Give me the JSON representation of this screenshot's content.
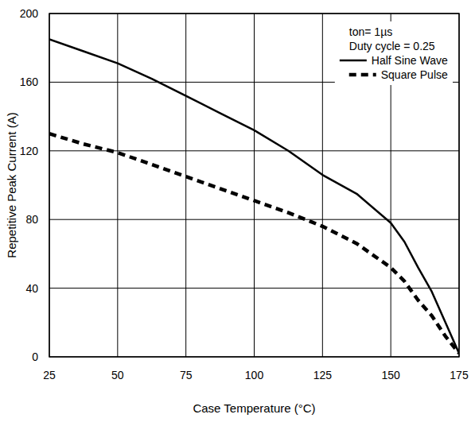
{
  "chart_data": {
    "type": "line",
    "x_label": "Case Temperature (°C)",
    "y_label": "Repetitive Peak Current (A)",
    "annotations": [
      "ton= 1µs",
      "Duty cycle = 0.25"
    ],
    "x": [
      25,
      37.5,
      50,
      62.5,
      75,
      87.5,
      100,
      112.5,
      125,
      137.5,
      150,
      155,
      160,
      165,
      170,
      175
    ],
    "series": [
      {
        "name": "Half Sine Wave",
        "color": "#000000",
        "line_style": "solid",
        "values": [
          185,
          178,
          171,
          162,
          152,
          142,
          132,
          120,
          106,
          95,
          78,
          67,
          52,
          38,
          20,
          2
        ]
      },
      {
        "name": "Square Pulse",
        "color": "#000000",
        "line_style": "dashed",
        "values": [
          130,
          124,
          119,
          112,
          105,
          98,
          91,
          84,
          76,
          66,
          52,
          44,
          33,
          24,
          12,
          2
        ]
      }
    ],
    "xlim": [
      25,
      175
    ],
    "ylim": [
      0,
      200
    ],
    "xticks": [
      25,
      50,
      75,
      100,
      125,
      150,
      175
    ],
    "yticks": [
      0,
      40,
      80,
      120,
      160,
      200
    ],
    "grid": true,
    "legend": "top-right"
  }
}
